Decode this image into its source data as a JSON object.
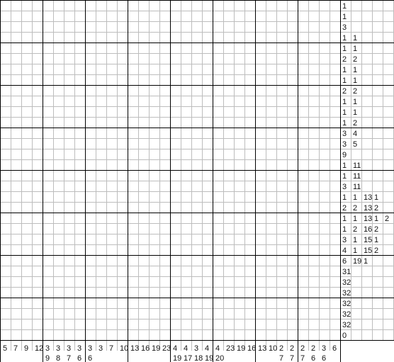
{
  "puzzle": {
    "type": "nonogram",
    "rows": 32,
    "cols": 32,
    "grid_line_color": "#bdbdbd",
    "major_line_color": "#000000",
    "clue_color": "#111111",
    "background": "#ffffff",
    "row_clues": [
      [
        "1"
      ],
      [
        "1"
      ],
      [
        "3"
      ],
      [
        "1",
        "1"
      ],
      [
        "1",
        "1"
      ],
      [
        "2",
        "2"
      ],
      [
        "1",
        "1"
      ],
      [
        "1",
        "1"
      ],
      [
        "2",
        "2"
      ],
      [
        "1",
        "1"
      ],
      [
        "1",
        "1"
      ],
      [
        "1",
        "2"
      ],
      [
        "3",
        "4"
      ],
      [
        "3",
        "5"
      ],
      [
        "9"
      ],
      [
        "1",
        "11"
      ],
      [
        "1",
        "11"
      ],
      [
        "3",
        "11"
      ],
      [
        "1",
        "1",
        "13",
        "1"
      ],
      [
        "2",
        "2",
        "13",
        "2"
      ],
      [
        "1",
        "1",
        "13",
        "1",
        "2"
      ],
      [
        "1",
        "2",
        "16",
        "2"
      ],
      [
        "3",
        "1",
        "15",
        "1"
      ],
      [
        "4",
        "1",
        "15",
        "2"
      ],
      [
        "6",
        "19",
        "1"
      ],
      [
        "31"
      ],
      [
        "32"
      ],
      [
        "32"
      ],
      [
        "32"
      ],
      [
        "32"
      ],
      [
        "32"
      ],
      [
        "0"
      ]
    ],
    "col_clues": [
      [
        "5"
      ],
      [
        "7"
      ],
      [
        "9"
      ],
      [
        "12"
      ],
      [
        "3",
        "9"
      ],
      [
        "3",
        "8"
      ],
      [
        "3",
        "7"
      ],
      [
        "3",
        "6"
      ],
      [
        "3",
        "6"
      ],
      [
        "3"
      ],
      [
        "7"
      ],
      [
        "10"
      ],
      [
        "13"
      ],
      [
        "16"
      ],
      [
        "19"
      ],
      [
        "23"
      ],
      [
        "4",
        "19"
      ],
      [
        "4",
        "17"
      ],
      [
        "3",
        "18"
      ],
      [
        "4",
        "19"
      ],
      [
        "4",
        "20"
      ],
      [
        "23"
      ],
      [
        "19"
      ],
      [
        "16"
      ],
      [
        "13"
      ],
      [
        "10"
      ],
      [
        "2",
        "7"
      ],
      [
        "2",
        "7"
      ],
      [
        "2",
        "7"
      ],
      [
        "2",
        "6"
      ],
      [
        "3",
        "6"
      ],
      [
        "6"
      ]
    ]
  }
}
